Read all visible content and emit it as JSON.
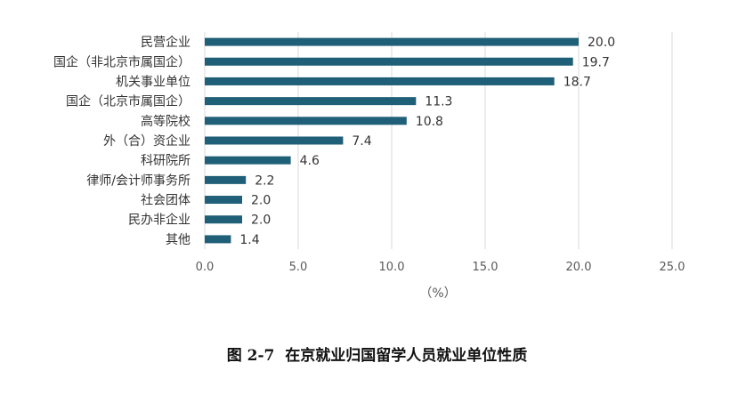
{
  "chart_data": {
    "type": "bar",
    "orientation": "horizontal",
    "categories": [
      "民营企业",
      "国企（非北京市属国企）",
      "机关事业单位",
      "国企（北京市属国企）",
      "高等院校",
      "外（合）资企业",
      "科研院所",
      "律师/会计师事务所",
      "社会团体",
      "民办非企业",
      "其他"
    ],
    "values": [
      20.0,
      19.7,
      18.7,
      11.3,
      10.8,
      7.4,
      4.6,
      2.2,
      2.0,
      2.0,
      1.4
    ],
    "value_labels": [
      "20.0",
      "19.7",
      "18.7",
      "11.3",
      "10.8",
      "7.4",
      "4.6",
      "2.2",
      "2.0",
      "2.0",
      "1.4"
    ],
    "x_ticks": [
      "0.0",
      "5.0",
      "10.0",
      "15.0",
      "20.0",
      "25.0"
    ],
    "xlim": [
      0,
      25
    ],
    "xlabel": "（%）",
    "grid": "vertical",
    "bar_color": "#1f5f78"
  },
  "caption": {
    "figure_no": "图 2-7",
    "title": "在京就业归国留学人员就业单位性质"
  }
}
